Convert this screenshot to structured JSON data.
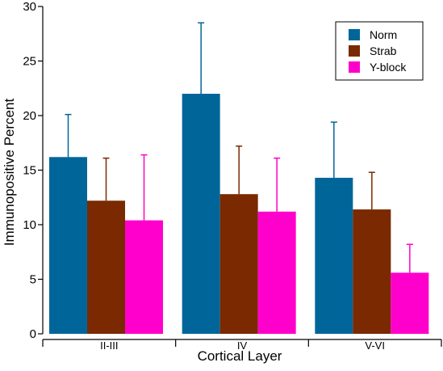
{
  "chart_data": {
    "type": "bar",
    "title": "",
    "xlabel": "Cortical Layer",
    "ylabel": "Immunopositive Percent",
    "ylim": [
      0,
      30
    ],
    "yticks": [
      0,
      5,
      10,
      15,
      20,
      25,
      30
    ],
    "categories": [
      "II-III",
      "IV",
      "V-VI"
    ],
    "series": [
      {
        "name": "Norm",
        "color": "#006699",
        "values": [
          16.2,
          22.0,
          14.3
        ],
        "error_upper": [
          20.1,
          28.5,
          19.4
        ]
      },
      {
        "name": "Strab",
        "color": "#7a2900",
        "values": [
          12.2,
          12.8,
          11.4
        ],
        "error_upper": [
          16.1,
          17.2,
          14.8
        ]
      },
      {
        "name": "Y-block",
        "color": "#ff00cc",
        "values": [
          10.4,
          11.2,
          5.6
        ],
        "error_upper": [
          16.4,
          16.1,
          8.2
        ]
      }
    ],
    "legend_position": "top-right",
    "grid": false
  }
}
